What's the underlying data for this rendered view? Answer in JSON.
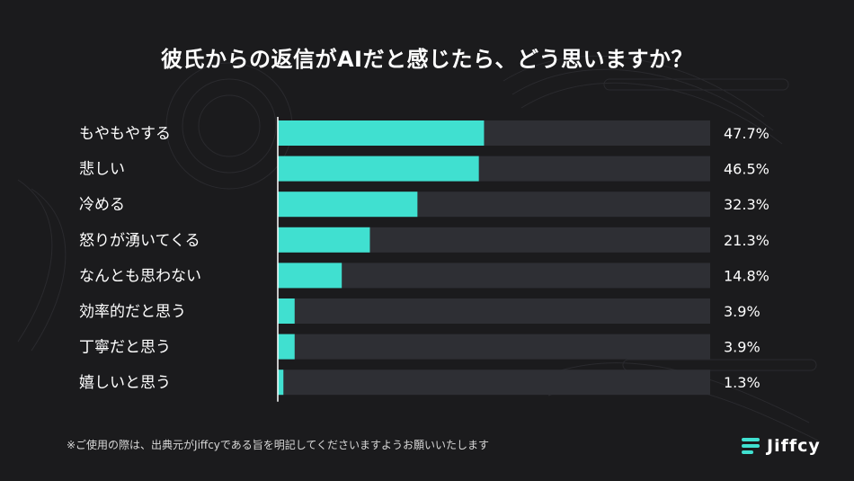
{
  "title": "彼氏からの返信がAIだと感じたら、どう思いますか？",
  "footnote": "※ご使用の際は、出典元がJiffcyである旨を明記してくださいますようお願いいたします",
  "brand": {
    "name": "Jiffcy",
    "icon": "jiffcy-logo-icon"
  },
  "colors": {
    "background": "#1b1b1d",
    "bar": "#40e0d0",
    "track": "#2e2f34",
    "text": "#ffffff"
  },
  "chart_data": {
    "type": "bar",
    "orientation": "horizontal",
    "categories": [
      "もやもやする",
      "悲しい",
      "冷める",
      "怒りが湧いてくる",
      "なんとも思わない",
      "効率的だと思う",
      "丁寧だと思う",
      "嬉しいと思う"
    ],
    "values": [
      47.7,
      46.5,
      32.3,
      21.3,
      14.8,
      3.9,
      3.9,
      1.3
    ],
    "value_labels": [
      "47.7%",
      "46.5%",
      "32.3%",
      "21.3%",
      "14.8%",
      "3.9%",
      "3.9%",
      "1.3%"
    ],
    "xlim": [
      0,
      100
    ],
    "grid": false
  }
}
